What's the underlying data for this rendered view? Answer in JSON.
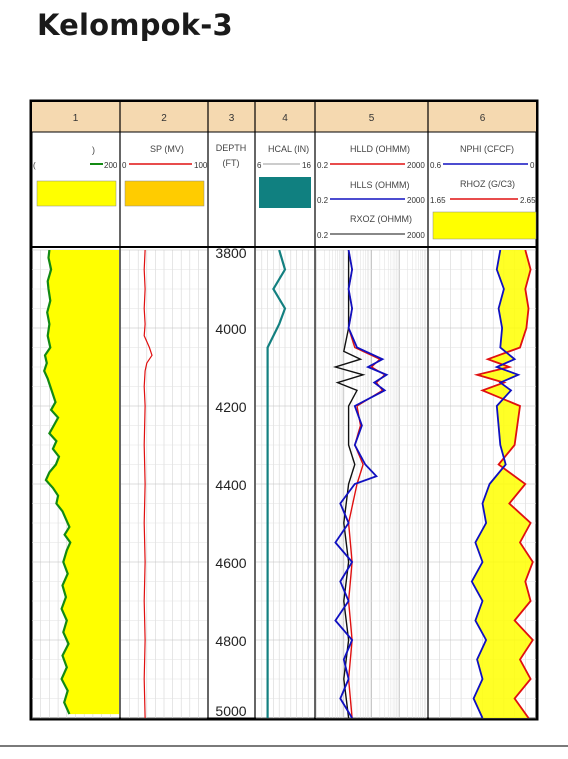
{
  "title": "Kelompok-3",
  "chart_data": {
    "type": "line",
    "depth": {
      "label": "DEPTH",
      "unit": "(FT)",
      "range": [
        3800,
        5000
      ],
      "ticks": [
        3800,
        4000,
        4200,
        4400,
        4600,
        4800,
        5000
      ],
      "tick_labels": [
        "3800",
        "4000",
        "4200",
        "4400",
        "4600",
        "4800",
        "5000"
      ]
    },
    "tracks": [
      {
        "number": "1",
        "curves": [
          {
            "name": ")",
            "scale": [
              "(",
              "200"
            ],
            "color": "#138a13",
            "values": [
              [
                3800,
                40
              ],
              [
                3820,
                38
              ],
              [
                3850,
                44
              ],
              [
                3880,
                36
              ],
              [
                3900,
                38
              ],
              [
                3930,
                42
              ],
              [
                3960,
                35
              ],
              [
                3990,
                40
              ],
              [
                4020,
                36
              ],
              [
                4050,
                42
              ],
              [
                4070,
                30
              ],
              [
                4090,
                34
              ],
              [
                4110,
                28
              ],
              [
                4130,
                36
              ],
              [
                4160,
                45
              ],
              [
                4190,
                54
              ],
              [
                4210,
                44
              ],
              [
                4230,
                60
              ],
              [
                4250,
                50
              ],
              [
                4270,
                40
              ],
              [
                4290,
                56
              ],
              [
                4310,
                48
              ],
              [
                4330,
                62
              ],
              [
                4350,
                55
              ],
              [
                4370,
                40
              ],
              [
                4390,
                32
              ],
              [
                4410,
                48
              ],
              [
                4430,
                60
              ],
              [
                4450,
                56
              ],
              [
                4470,
                70
              ],
              [
                4490,
                78
              ],
              [
                4510,
                86
              ],
              [
                4530,
                75
              ],
              [
                4550,
                88
              ],
              [
                4570,
                80
              ],
              [
                4600,
                72
              ],
              [
                4630,
                82
              ],
              [
                4660,
                70
              ],
              [
                4690,
                78
              ],
              [
                4720,
                68
              ],
              [
                4750,
                80
              ],
              [
                4780,
                72
              ],
              [
                4810,
                84
              ],
              [
                4840,
                70
              ],
              [
                4870,
                80
              ],
              [
                4900,
                68
              ],
              [
                4930,
                82
              ],
              [
                4960,
                74
              ],
              [
                4990,
                86
              ]
            ]
          }
        ],
        "legend_fill": "#ffff00"
      },
      {
        "number": "2",
        "curves": [
          {
            "name": "SP (MV)",
            "scale": [
              "0",
              "100"
            ],
            "color": "#e01010",
            "values": [
              [
                3800,
                28
              ],
              [
                3850,
                27
              ],
              [
                3900,
                28
              ],
              [
                3950,
                27
              ],
              [
                3990,
                28
              ],
              [
                4020,
                27
              ],
              [
                4050,
                33
              ],
              [
                4070,
                36
              ],
              [
                4090,
                30
              ],
              [
                4110,
                28
              ],
              [
                4150,
                27
              ],
              [
                4200,
                28
              ],
              [
                4300,
                27
              ],
              [
                4400,
                28
              ],
              [
                4500,
                27
              ],
              [
                4600,
                28
              ],
              [
                4700,
                27
              ],
              [
                4800,
                28
              ],
              [
                4900,
                27
              ],
              [
                5000,
                28
              ]
            ]
          }
        ],
        "legend_fill": "#ffcc00"
      },
      {
        "number": "3",
        "curves": []
      },
      {
        "number": "4",
        "curves": [
          {
            "name": "HCAL (IN)",
            "scale": [
              "6",
              "16"
            ],
            "color": "#138080",
            "values": [
              [
                3800,
                10
              ],
              [
                3850,
                11
              ],
              [
                3900,
                9
              ],
              [
                3950,
                11
              ],
              [
                3990,
                10
              ],
              [
                4050,
                8
              ],
              [
                4200,
                8
              ],
              [
                4400,
                8
              ],
              [
                4600,
                8
              ],
              [
                4800,
                8
              ],
              [
                5000,
                8
              ]
            ]
          }
        ],
        "legend_fill": "#108080"
      },
      {
        "number": "5",
        "curves": [
          {
            "name": "HLLD (OHMM)",
            "scale": [
              "0.2",
              "2000"
            ],
            "color": "#e01010",
            "values": [
              [
                3800,
                3
              ],
              [
                3850,
                4
              ],
              [
                3900,
                3
              ],
              [
                3950,
                4
              ],
              [
                4000,
                3
              ],
              [
                4050,
                5
              ],
              [
                4080,
                40
              ],
              [
                4100,
                20
              ],
              [
                4120,
                60
              ],
              [
                4140,
                30
              ],
              [
                4160,
                50
              ],
              [
                4200,
                6
              ],
              [
                4250,
                8
              ],
              [
                4300,
                5
              ],
              [
                4350,
                10
              ],
              [
                4400,
                6
              ],
              [
                4500,
                3
              ],
              [
                4600,
                4
              ],
              [
                4700,
                3
              ],
              [
                4800,
                4
              ],
              [
                4900,
                3
              ],
              [
                5000,
                4
              ]
            ]
          },
          {
            "name": "HLLS (OHMM)",
            "scale": [
              "0.2",
              "2000"
            ],
            "color": "#1010c0",
            "values": [
              [
                3800,
                3
              ],
              [
                3850,
                4
              ],
              [
                3900,
                3
              ],
              [
                3950,
                4
              ],
              [
                4000,
                3
              ],
              [
                4050,
                6
              ],
              [
                4080,
                50
              ],
              [
                4100,
                15
              ],
              [
                4120,
                70
              ],
              [
                4140,
                25
              ],
              [
                4160,
                60
              ],
              [
                4200,
                5
              ],
              [
                4250,
                9
              ],
              [
                4300,
                5
              ],
              [
                4350,
                12
              ],
              [
                4380,
                30
              ],
              [
                4400,
                5
              ],
              [
                4450,
                1.5
              ],
              [
                4500,
                3
              ],
              [
                4550,
                1
              ],
              [
                4600,
                4
              ],
              [
                4650,
                1.5
              ],
              [
                4700,
                3
              ],
              [
                4750,
                1
              ],
              [
                4800,
                4
              ],
              [
                4850,
                2
              ],
              [
                4900,
                3
              ],
              [
                4950,
                1.5
              ],
              [
                5000,
                4
              ]
            ]
          },
          {
            "name": "RXOZ (OHMM)",
            "scale": [
              "0.2",
              "2000"
            ],
            "color": "#111111",
            "values": [
              [
                3800,
                3
              ],
              [
                3900,
                3
              ],
              [
                4000,
                3
              ],
              [
                4060,
                2
              ],
              [
                4080,
                8
              ],
              [
                4100,
                1
              ],
              [
                4120,
                10
              ],
              [
                4140,
                1.2
              ],
              [
                4160,
                6
              ],
              [
                4200,
                3
              ],
              [
                4300,
                3
              ],
              [
                4350,
                5
              ],
              [
                4400,
                3
              ],
              [
                4500,
                2
              ],
              [
                4600,
                3
              ],
              [
                4700,
                2
              ],
              [
                4800,
                3
              ],
              [
                4900,
                2
              ],
              [
                5000,
                3
              ]
            ]
          }
        ],
        "grid": "log"
      },
      {
        "number": "6",
        "curves": [
          {
            "name": "NPHI (CFCF)",
            "scale": [
              "0.6",
              "0"
            ],
            "color": "#1010c0",
            "values": [
              [
                3800,
                0.2
              ],
              [
                3850,
                0.22
              ],
              [
                3900,
                0.18
              ],
              [
                3950,
                0.21
              ],
              [
                4000,
                0.19
              ],
              [
                4050,
                0.2
              ],
              [
                4080,
                0.12
              ],
              [
                4100,
                0.22
              ],
              [
                4120,
                0.1
              ],
              [
                4140,
                0.2
              ],
              [
                4160,
                0.14
              ],
              [
                4200,
                0.22
              ],
              [
                4300,
                0.2
              ],
              [
                4350,
                0.17
              ],
              [
                4400,
                0.26
              ],
              [
                4450,
                0.3
              ],
              [
                4500,
                0.28
              ],
              [
                4550,
                0.34
              ],
              [
                4600,
                0.3
              ],
              [
                4650,
                0.36
              ],
              [
                4700,
                0.3
              ],
              [
                4750,
                0.34
              ],
              [
                4800,
                0.28
              ],
              [
                4850,
                0.33
              ],
              [
                4900,
                0.3
              ],
              [
                4950,
                0.35
              ],
              [
                5000,
                0.3
              ]
            ]
          },
          {
            "name": "RHOZ (G/C3)",
            "scale": [
              "1.65",
              "2.65"
            ],
            "color": "#e01010",
            "values": [
              [
                3800,
                2.55
              ],
              [
                3850,
                2.6
              ],
              [
                3900,
                2.55
              ],
              [
                3950,
                2.58
              ],
              [
                4000,
                2.56
              ],
              [
                4050,
                2.5
              ],
              [
                4080,
                2.2
              ],
              [
                4100,
                2.4
              ],
              [
                4120,
                2.1
              ],
              [
                4140,
                2.35
              ],
              [
                4160,
                2.15
              ],
              [
                4200,
                2.5
              ],
              [
                4300,
                2.45
              ],
              [
                4350,
                2.3
              ],
              [
                4400,
                2.55
              ],
              [
                4450,
                2.4
              ],
              [
                4500,
                2.6
              ],
              [
                4550,
                2.5
              ],
              [
                4600,
                2.62
              ],
              [
                4650,
                2.55
              ],
              [
                4700,
                2.6
              ],
              [
                4750,
                2.45
              ],
              [
                4800,
                2.62
              ],
              [
                4850,
                2.5
              ],
              [
                4900,
                2.6
              ],
              [
                4950,
                2.45
              ],
              [
                5000,
                2.58
              ]
            ]
          }
        ],
        "legend_fill": "#ffff00"
      }
    ]
  }
}
